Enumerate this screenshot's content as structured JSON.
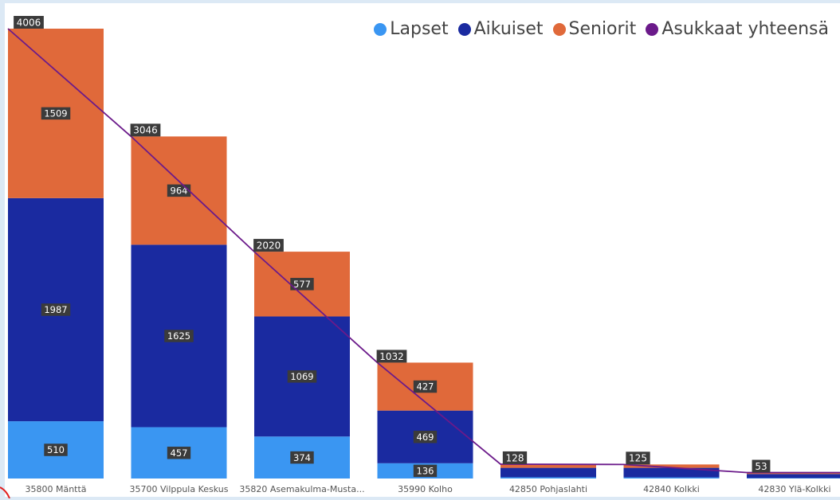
{
  "chart_data": {
    "type": "bar",
    "stacked": true,
    "categories": [
      "35800 Mänttä",
      "35700 Vilppula Keskus",
      "35820 Asemakulma-Musta...",
      "35990 Kolho",
      "42850 Pohjaslahti",
      "42840 Kolkki",
      "42830 Ylä-Kolkki"
    ],
    "series": [
      {
        "name": "Lapset",
        "color": "#3a96f2",
        "values": [
          510,
          457,
          374,
          136,
          11,
          10,
          4
        ]
      },
      {
        "name": "Aikuiset",
        "color": "#1a2aa0",
        "values": [
          1987,
          1625,
          1069,
          469,
          84,
          85,
          36
        ]
      },
      {
        "name": "Seniorit",
        "color": "#e0693a",
        "values": [
          1509,
          964,
          577,
          427,
          33,
          30,
          13
        ]
      }
    ],
    "line": {
      "name": "Asukkaat yhteensä",
      "color": "#6b1a8a",
      "values": [
        4006,
        3046,
        2020,
        1032,
        128,
        125,
        53
      ]
    },
    "segment_labels": {
      "Lapset": [
        "510",
        "457",
        "374",
        "136",
        "",
        "",
        ""
      ],
      "Aikuiset": [
        "1987",
        "1625",
        "1069",
        "469",
        "",
        "",
        ""
      ],
      "Seniorit": [
        "1509",
        "964",
        "577",
        "427",
        "",
        "",
        ""
      ]
    },
    "total_labels": [
      "4006",
      "3046",
      "2020",
      "1032",
      "128",
      "125",
      "53"
    ],
    "ylim": [
      0,
      4006
    ],
    "legend_position": "top-right",
    "grid": false
  },
  "legend": {
    "items": [
      {
        "label": "Lapset",
        "color": "#3a96f2"
      },
      {
        "label": "Aikuiset",
        "color": "#1a2aa0"
      },
      {
        "label": "Seniorit",
        "color": "#e0693a"
      },
      {
        "label": "Asukkaat yhteensä",
        "color": "#6b1a8a"
      }
    ]
  }
}
